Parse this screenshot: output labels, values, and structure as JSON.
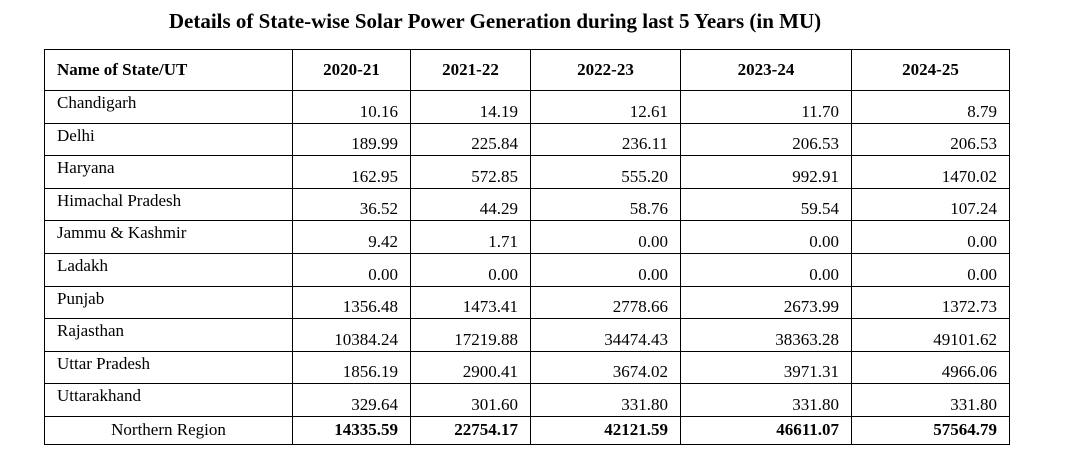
{
  "title": "Details of State-wise Solar Power Generation during last 5 Years (in MU)",
  "table": {
    "header": [
      "Name of State/UT",
      "2020-21",
      "2021-22",
      "2022-23",
      "2023-24",
      "2024-25"
    ],
    "rows": [
      {
        "name": "Chandigarh",
        "values": [
          "10.16",
          "14.19",
          "12.61",
          "11.70",
          "8.79"
        ]
      },
      {
        "name": "Delhi",
        "values": [
          "189.99",
          "225.84",
          "236.11",
          "206.53",
          "206.53"
        ]
      },
      {
        "name": "Haryana",
        "values": [
          "162.95",
          "572.85",
          "555.20",
          "992.91",
          "1470.02"
        ]
      },
      {
        "name": "Himachal Pradesh",
        "values": [
          "36.52",
          "44.29",
          "58.76",
          "59.54",
          "107.24"
        ]
      },
      {
        "name": "Jammu & Kashmir",
        "values": [
          "9.42",
          "1.71",
          "0.00",
          "0.00",
          "0.00"
        ]
      },
      {
        "name": "Ladakh",
        "values": [
          "0.00",
          "0.00",
          "0.00",
          "0.00",
          "0.00"
        ]
      },
      {
        "name": "Punjab",
        "values": [
          "1356.48",
          "1473.41",
          "2778.66",
          "2673.99",
          "1372.73"
        ]
      },
      {
        "name": "Rajasthan",
        "values": [
          "10384.24",
          "17219.88",
          "34474.43",
          "38363.28",
          "49101.62"
        ]
      },
      {
        "name": "Uttar Pradesh",
        "values": [
          "1856.19",
          "2900.41",
          "3674.02",
          "3971.31",
          "4966.06"
        ]
      },
      {
        "name": "Uttarakhand",
        "values": [
          "329.64",
          "301.60",
          "331.80",
          "331.80",
          "331.80"
        ]
      }
    ],
    "total": {
      "name": "Northern Region",
      "values": [
        "14335.59",
        "22754.17",
        "42121.59",
        "46611.07",
        "57564.79"
      ]
    }
  }
}
